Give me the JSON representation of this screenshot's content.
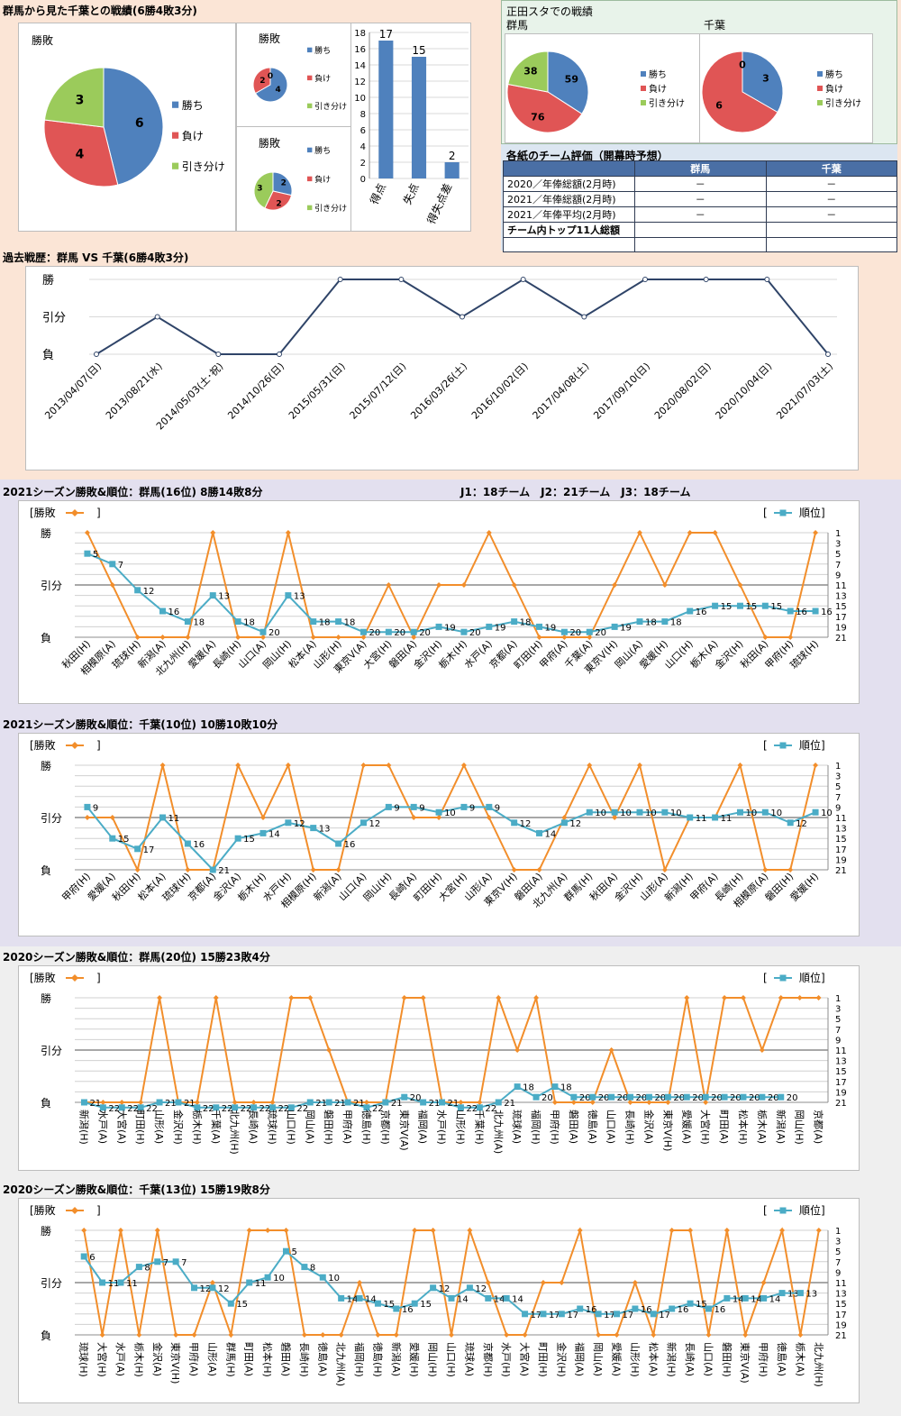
{
  "h2h": {
    "section_title": "群馬から見た千葉との戦績(6勝4敗3分)",
    "pie_main": {
      "title": "勝敗",
      "values": [
        6,
        4,
        3
      ]
    },
    "pie_home": {
      "title": "勝敗",
      "values": [
        4,
        2,
        0
      ],
      "display": [
        "4",
        "2",
        "0"
      ]
    },
    "pie_away": {
      "title": "勝敗",
      "values": [
        2,
        2,
        3
      ]
    },
    "legend": [
      "勝ち",
      "負け",
      "引き分け"
    ],
    "bars": {
      "categories": [
        "得点",
        "失点",
        "得失点差"
      ],
      "values": [
        17,
        15,
        2
      ],
      "ymax": 18,
      "ticks": [
        "0",
        "2",
        "4",
        "6",
        "8",
        "10",
        "12",
        "14",
        "16",
        "18"
      ]
    }
  },
  "shoda": {
    "title": "正田スタでの戦績",
    "gunma_label": "群馬",
    "chiba_label": "千葉",
    "pie_gunma": {
      "values": [
        59,
        76,
        38
      ]
    },
    "pie_chiba": {
      "values": [
        3,
        6,
        0
      ]
    },
    "legend": [
      "勝ち",
      "負け",
      "引き分け"
    ]
  },
  "evaluation": {
    "title": "各紙のチーム評価（開幕時予想）",
    "headers": [
      "",
      "群馬",
      "千葉"
    ],
    "rows": [
      [
        "2020／年俸総額(2月時)",
        "－",
        "－"
      ],
      [
        "2021／年俸総額(2月時)",
        "－",
        "－"
      ],
      [
        "2021／年俸平均(2月時)",
        "－",
        "－"
      ],
      [
        "チーム内トップ11人総額",
        "",
        ""
      ],
      [
        "",
        "",
        ""
      ]
    ]
  },
  "history": {
    "title": "過去戦歴：群馬 VS 千葉(6勝4敗3分)",
    "ylabels": [
      "勝",
      "引分",
      "負"
    ],
    "dates": [
      "2013/04/07(日)",
      "2013/08/21(水)",
      "2014/05/03(土･祝)",
      "2014/10/26(日)",
      "2015/05/31(日)",
      "2015/07/12(日)",
      "2016/03/26(土)",
      "2016/10/02(日)",
      "2017/04/08(土)",
      "2017/09/10(日)",
      "2020/08/02(日)",
      "2020/10/04(日)",
      "2021/07/03(土)"
    ],
    "results": [
      0,
      1,
      0,
      0,
      2,
      2,
      1,
      2,
      1,
      2,
      2,
      2,
      0
    ]
  },
  "league_note": "J1：18チーム　J2：21チーム　J3：18チーム",
  "common": {
    "left_legend": "[勝敗",
    "left_legend_close": "]",
    "right_legend_open": "[",
    "right_legend": "順位]",
    "ylabels": [
      "勝",
      "引分",
      "負"
    ],
    "rank_ticks": [
      "1",
      "3",
      "5",
      "7",
      "9",
      "11",
      "13",
      "15",
      "17",
      "19",
      "21"
    ]
  },
  "colors": {
    "result_line": "#F28E2B",
    "rank_line": "#4BACC6",
    "history_line": "#2F4468",
    "win": "#4F81BD",
    "loss": "#E05555",
    "draw": "#9BCB5B"
  },
  "chart_data": [
    {
      "type": "line",
      "title": "2021シーズン勝敗&順位：群馬(16位) 8勝14敗8分",
      "categories": [
        "秋田(H)",
        "相模原(A)",
        "琉球(H)",
        "新潟(A)",
        "北九州(H)",
        "愛媛(A)",
        "長崎(H)",
        "山口(A)",
        "岡山(H)",
        "松本(A)",
        "山形(H)",
        "東京V(A)",
        "大宮(H)",
        "磐田(A)",
        "金沢(H)",
        "栃木(H)",
        "水戸(A)",
        "京都(A)",
        "町田(H)",
        "甲府(A)",
        "千葉(A)",
        "東京V(H)",
        "岡山(A)",
        "愛媛(H)",
        "山口(H)",
        "栃木(A)",
        "金沢(H)",
        "秋田(A)",
        "甲府(H)",
        "琉球(H)"
      ],
      "results": [
        2,
        1,
        0,
        0,
        0,
        2,
        0,
        0,
        2,
        0,
        0,
        0,
        1,
        0,
        1,
        1,
        2,
        1,
        0,
        0,
        0,
        1,
        2,
        1,
        2,
        2,
        1,
        0,
        0,
        2
      ],
      "ranks": [
        5,
        7,
        12,
        16,
        18,
        13,
        18,
        20,
        13,
        18,
        18,
        20,
        20,
        20,
        19,
        20,
        19,
        18,
        19,
        20,
        20,
        19,
        18,
        18,
        16,
        15,
        15,
        15,
        16,
        16
      ]
    },
    {
      "type": "line",
      "title": "2021シーズン勝敗&順位：千葉(10位) 10勝10敗10分",
      "categories": [
        "甲府(H)",
        "愛媛(A)",
        "秋田(H)",
        "松本(A)",
        "琉球(H)",
        "京都(A)",
        "金沢(A)",
        "栃木(H)",
        "水戸(H)",
        "相模原(H)",
        "新潟(A)",
        "山口(A)",
        "岡山(H)",
        "長崎(A)",
        "町田(H)",
        "大宮(H)",
        "山形(A)",
        "東京V(H)",
        "磐田(A)",
        "北九州(A)",
        "群馬(H)",
        "秋田(A)",
        "金沢(H)",
        "山形(A)",
        "新潟(H)",
        "甲府(A)",
        "長崎(H)",
        "相模原(A)",
        "磐田(H)",
        "愛媛(H)"
      ],
      "results": [
        1,
        1,
        0,
        2,
        0,
        0,
        2,
        1,
        2,
        0,
        0,
        2,
        2,
        1,
        1,
        2,
        1,
        0,
        0,
        1,
        2,
        1,
        2,
        0,
        1,
        1,
        2,
        0,
        0,
        2
      ],
      "ranks": [
        9,
        15,
        17,
        11,
        16,
        21,
        15,
        14,
        12,
        13,
        16,
        12,
        9,
        9,
        10,
        9,
        9,
        12,
        14,
        12,
        10,
        10,
        10,
        10,
        11,
        11,
        10,
        10,
        12,
        10
      ]
    },
    {
      "type": "line",
      "title": "2020シーズン勝敗&順位：群馬(20位) 15勝23敗4分",
      "categories": [
        "新潟(H)",
        "水戸(A)",
        "大宮(A)",
        "町田(H)",
        "山形(A)",
        "金沢(H)",
        "栃木(H)",
        "千葉(A)",
        "北九州(H)",
        "長崎(A)",
        "琉球(H)",
        "山口(H)",
        "岡山(A)",
        "磐田(H)",
        "甲府(A)",
        "徳島(H)",
        "京都(H)",
        "東京V(A)",
        "福岡(A)",
        "水戸(H)",
        "山形(H)",
        "千葉(H)",
        "北九州(A)",
        "琉球(A)",
        "福岡(H)",
        "甲府(H)",
        "磐田(A)",
        "徳島(A)",
        "山口(A)",
        "長崎(H)",
        "金沢(A)",
        "東京V(H)",
        "愛媛(A)",
        "大宮(H)",
        "町田(A)",
        "松本(H)",
        "栃木(A)",
        "新潟(A)",
        "岡山(H)",
        "京都(A)"
      ],
      "results": [
        0,
        0,
        0,
        0,
        2,
        0,
        0,
        2,
        0,
        0,
        0,
        2,
        2,
        1,
        0,
        0,
        0,
        2,
        2,
        0,
        0,
        0,
        2,
        1,
        2,
        0,
        0,
        0,
        1,
        0,
        0,
        0,
        2,
        0,
        2,
        2,
        1,
        2,
        2,
        2
      ],
      "ranks": [
        21,
        22,
        22,
        22,
        21,
        21,
        22,
        22,
        22,
        22,
        22,
        22,
        21,
        21,
        21,
        22,
        21,
        20,
        21,
        21,
        22,
        22,
        21,
        18,
        20,
        18,
        20,
        20,
        20,
        20,
        20,
        20,
        20,
        20,
        20,
        20,
        20,
        20,
        null,
        null
      ],
      "rank_labels": [
        21,
        22,
        22,
        22,
        21,
        21,
        22,
        22,
        22,
        22,
        22,
        22,
        21,
        21,
        21,
        22,
        21,
        20,
        21,
        21,
        22,
        22,
        21,
        18,
        20,
        18,
        20,
        20,
        20,
        20,
        20,
        20,
        20,
        20,
        20,
        20,
        20,
        20,
        null,
        null
      ]
    },
    {
      "type": "line",
      "title": "2020シーズン勝敗&順位：千葉(13位) 15勝19敗8分",
      "categories": [
        "琉球(H)",
        "大宮(H)",
        "水戸(A)",
        "栃木(H)",
        "金沢(A)",
        "東京V(H)",
        "甲府(A)",
        "山形(A)",
        "群馬(H)",
        "町田(A)",
        "松本(H)",
        "磐田(A)",
        "長崎(H)",
        "徳島(A)",
        "北九州(A)",
        "福岡(H)",
        "徳島(H)",
        "新潟(A)",
        "愛媛(H)",
        "岡山(H)",
        "山口(H)",
        "琉球(A)",
        "京都(H)",
        "水戸(H)",
        "大宮(A)",
        "町田(H)",
        "金沢(H)",
        "福岡(A)",
        "岡山(A)",
        "愛媛(A)",
        "山形(H)",
        "松本(A)",
        "新潟(H)",
        "長崎(A)",
        "山口(A)",
        "磐田(H)",
        "東京V(A)",
        "甲府(H)",
        "徳島(A)",
        "栃木(A)",
        "北九州(H)"
      ],
      "results": [
        2,
        0,
        2,
        0,
        2,
        0,
        0,
        1,
        0,
        2,
        2,
        2,
        0,
        0,
        0,
        1,
        0,
        0,
        2,
        2,
        0,
        2,
        1,
        0,
        0,
        1,
        1,
        2,
        0,
        0,
        1,
        0,
        2,
        2,
        0,
        2,
        0,
        1,
        2,
        0,
        2
      ],
      "ranks": [
        6,
        11,
        11,
        8,
        7,
        7,
        12,
        12,
        15,
        11,
        10,
        5,
        8,
        10,
        14,
        14,
        15,
        16,
        15,
        12,
        14,
        12,
        14,
        14,
        17,
        17,
        17,
        16,
        17,
        17,
        16,
        17,
        16,
        15,
        16,
        14,
        14,
        14,
        13,
        13,
        null
      ],
      "rank_labels": [
        6,
        11,
        11,
        8,
        7,
        7,
        12,
        12,
        15,
        11,
        10,
        5,
        8,
        10,
        14,
        14,
        15,
        16,
        15,
        12,
        14,
        12,
        14,
        14,
        17,
        17,
        17,
        16,
        17,
        17,
        16,
        17,
        16,
        15,
        16,
        14,
        14,
        14,
        13,
        13,
        null
      ]
    }
  ]
}
